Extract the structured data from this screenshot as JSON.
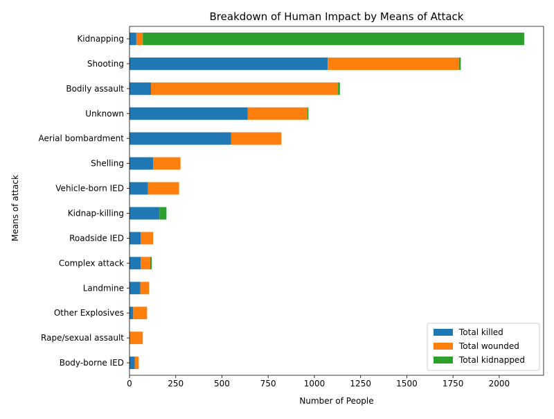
{
  "chart_data": {
    "type": "bar",
    "orientation": "horizontal",
    "stacked": true,
    "title": "Breakdown of Human Impact by Means of Attack",
    "xlabel": "Number of People",
    "ylabel": "Means of attack",
    "xlim": [
      0,
      2240
    ],
    "xticks": [
      0,
      250,
      500,
      750,
      1000,
      1250,
      1500,
      1750,
      2000
    ],
    "grid": false,
    "legend_position": "lower-right",
    "categories": [
      "Kidnapping",
      "Shooting",
      "Bodily assault",
      "Unknown",
      "Aerial bombardment",
      "Shelling",
      "Vehicle-born IED",
      "Kidnap-killing",
      "Roadside IED",
      "Complex attack",
      "Landmine ",
      "Other Explosives",
      "Rape/sexual assault",
      "Body-borne IED"
    ],
    "series": [
      {
        "name": "Total killed",
        "color": "#1f77b4",
        "values": [
          37,
          1072,
          116,
          640,
          550,
          128,
          100,
          162,
          60,
          60,
          58,
          20,
          0,
          28
        ]
      },
      {
        "name": "Total wounded",
        "color": "#ff7f0e",
        "values": [
          35,
          710,
          1012,
          322,
          272,
          148,
          168,
          0,
          68,
          52,
          48,
          75,
          72,
          22
        ]
      },
      {
        "name": "Total kidnapped",
        "color": "#2ca02c",
        "values": [
          2063,
          10,
          10,
          6,
          0,
          0,
          0,
          38,
          0,
          8,
          0,
          0,
          0,
          0
        ]
      }
    ]
  }
}
